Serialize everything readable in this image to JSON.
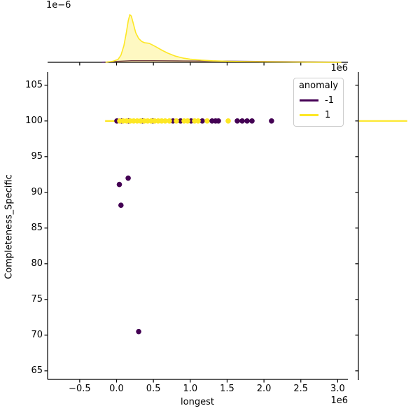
{
  "figure": {
    "background": "#ffffff"
  },
  "colors": {
    "anomaly_neg": "#440154",
    "anomaly_pos": "#fde725",
    "kde_fill_pos": "rgba(253,231,37,0.28)",
    "kde_fill_neg": "rgba(68,1,84,0.18)",
    "axis": "#000000",
    "legend_border": "#cccccc"
  },
  "axes": {
    "xlabel": "longest",
    "ylabel": "Completeness_Specific",
    "x_offset_label": "1e6",
    "top_density_offset_label": "1e−6",
    "xticks": {
      "values": [
        -0.5,
        0.0,
        0.5,
        1.0,
        1.5,
        2.0,
        2.5,
        3.0
      ],
      "labels": [
        "−0.5",
        "0.0",
        "0.5",
        "1.0",
        "1.5",
        "2.0",
        "2.5",
        "3.0"
      ]
    },
    "yticks": {
      "values": [
        105,
        100,
        95,
        90,
        85,
        80,
        75,
        70,
        65
      ],
      "labels": [
        "105",
        "100",
        "95",
        "90",
        "85",
        "80",
        "75",
        "70",
        "65"
      ]
    },
    "xlim": [
      -0.93,
      3.14
    ],
    "ylim": [
      63.8,
      106.8
    ]
  },
  "legend": {
    "title": "anomaly",
    "entries": [
      {
        "label": "-1",
        "color": "#440154"
      },
      {
        "label": "1",
        "color": "#fde725"
      }
    ]
  },
  "chart_data": {
    "type": "scatter",
    "title": "",
    "xlabel": "longest",
    "ylabel": "Completeness_Specific",
    "x_unit": "1e6",
    "legend_title": "anomaly",
    "grid": false,
    "series": [
      {
        "name": "-1",
        "color": "#440154",
        "points": [
          [
            0.005,
            100
          ],
          [
            0.071,
            100
          ],
          [
            0.166,
            100
          ],
          [
            0.356,
            100
          ],
          [
            0.489,
            100
          ],
          [
            0.765,
            100
          ],
          [
            0.869,
            100
          ],
          [
            1.011,
            100
          ],
          [
            1.163,
            100
          ],
          [
            1.296,
            100
          ],
          [
            1.344,
            100
          ],
          [
            1.382,
            100
          ],
          [
            1.638,
            100
          ],
          [
            1.705,
            100
          ],
          [
            1.771,
            100
          ],
          [
            1.838,
            100
          ],
          [
            2.103,
            100
          ],
          [
            0.158,
            92.0
          ],
          [
            0.038,
            91.1
          ],
          [
            0.06,
            88.2
          ],
          [
            0.3,
            70.5
          ]
        ]
      },
      {
        "name": "1",
        "color": "#fde725",
        "points": [
          [
            0.043,
            100
          ],
          [
            0.09,
            100
          ],
          [
            0.138,
            100
          ],
          [
            0.185,
            100
          ],
          [
            0.233,
            100
          ],
          [
            0.28,
            100
          ],
          [
            0.328,
            100
          ],
          [
            0.375,
            100
          ],
          [
            0.423,
            100
          ],
          [
            0.47,
            100
          ],
          [
            0.518,
            100
          ],
          [
            0.565,
            100
          ],
          [
            0.613,
            100
          ],
          [
            0.66,
            100
          ],
          [
            0.717,
            100
          ],
          [
            0.812,
            100
          ],
          [
            0.916,
            100
          ],
          [
            0.964,
            100
          ],
          [
            1.059,
            100
          ],
          [
            1.106,
            100
          ],
          [
            1.23,
            100
          ],
          [
            1.515,
            100
          ]
        ],
        "line_segment": {
          "x_start": -0.155,
          "x_end": 0.0,
          "y": 100
        }
      }
    ],
    "marginal_top": {
      "type": "kde",
      "density_unit": "1e−6",
      "series": [
        {
          "name": "-1",
          "color": "#440154",
          "curve": [
            [
              -0.2,
              0
            ],
            [
              0.0,
              0.02
            ],
            [
              0.2,
              0.035
            ],
            [
              0.5,
              0.035
            ],
            [
              0.9,
              0.03
            ],
            [
              1.4,
              0.025
            ],
            [
              1.9,
              0.02
            ],
            [
              2.4,
              0.012
            ],
            [
              3.0,
              0.005
            ],
            [
              3.05,
              0
            ]
          ]
        },
        {
          "name": "1",
          "color": "#fde725",
          "curve": [
            [
              -0.15,
              0
            ],
            [
              -0.05,
              0.02
            ],
            [
              0.02,
              0.06
            ],
            [
              0.06,
              0.15
            ],
            [
              0.1,
              0.35
            ],
            [
              0.13,
              0.6
            ],
            [
              0.16,
              0.88
            ],
            [
              0.18,
              1.0
            ],
            [
              0.2,
              0.97
            ],
            [
              0.23,
              0.8
            ],
            [
              0.26,
              0.62
            ],
            [
              0.3,
              0.5
            ],
            [
              0.34,
              0.44
            ],
            [
              0.38,
              0.41
            ],
            [
              0.44,
              0.4
            ],
            [
              0.48,
              0.37
            ],
            [
              0.54,
              0.32
            ],
            [
              0.62,
              0.25
            ],
            [
              0.7,
              0.19
            ],
            [
              0.8,
              0.13
            ],
            [
              0.9,
              0.09
            ],
            [
              1.0,
              0.065
            ],
            [
              1.15,
              0.045
            ],
            [
              1.3,
              0.032
            ],
            [
              1.5,
              0.022
            ],
            [
              1.75,
              0.015
            ],
            [
              2.0,
              0.011
            ],
            [
              2.3,
              0.008
            ],
            [
              2.6,
              0.005
            ],
            [
              2.9,
              0.002
            ],
            [
              3.05,
              0
            ]
          ]
        }
      ]
    },
    "marginal_right": {
      "type": "kde",
      "series": [
        {
          "name": "1",
          "color": "#fde725",
          "spike": {
            "y": 100,
            "rel_length": 1.0
          }
        }
      ]
    }
  }
}
